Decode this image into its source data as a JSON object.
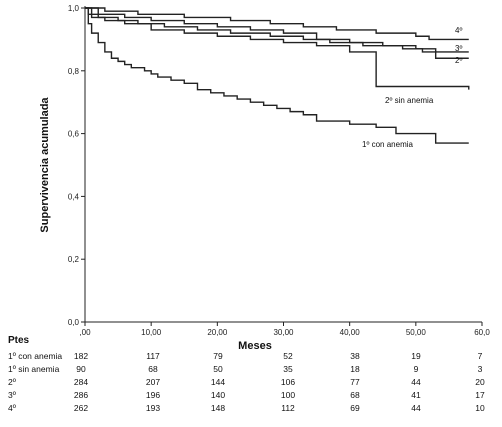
{
  "chart_data": {
    "type": "line",
    "title": "",
    "xlabel": "Meses",
    "ylabel": "Supervivencia acumulada",
    "xlim": [
      0,
      60
    ],
    "ylim": [
      0,
      1
    ],
    "xticks": [
      ",00",
      "10,00",
      "20,00",
      "30,00",
      "40,00",
      "50,00",
      "60,0"
    ],
    "xtick_values": [
      0,
      10,
      20,
      30,
      40,
      50,
      60
    ],
    "yticks": [
      "0,0",
      "0,2",
      "0,4",
      "0,6",
      "0,8",
      "1,0"
    ],
    "ytick_values": [
      0,
      0.2,
      0.4,
      0.6,
      0.8,
      1.0
    ],
    "step": true,
    "series": [
      {
        "name": "1º con anemia",
        "points": [
          [
            0,
            1.0
          ],
          [
            0.5,
            0.95
          ],
          [
            1,
            0.92
          ],
          [
            2,
            0.89
          ],
          [
            3,
            0.86
          ],
          [
            4,
            0.84
          ],
          [
            5,
            0.83
          ],
          [
            6,
            0.82
          ],
          [
            7,
            0.81
          ],
          [
            9,
            0.8
          ],
          [
            10,
            0.79
          ],
          [
            11,
            0.78
          ],
          [
            13,
            0.77
          ],
          [
            15,
            0.76
          ],
          [
            17,
            0.74
          ],
          [
            19,
            0.73
          ],
          [
            21,
            0.72
          ],
          [
            23,
            0.71
          ],
          [
            25,
            0.7
          ],
          [
            27,
            0.69
          ],
          [
            29,
            0.68
          ],
          [
            31,
            0.67
          ],
          [
            33,
            0.66
          ],
          [
            35,
            0.64
          ],
          [
            40,
            0.63
          ],
          [
            44,
            0.62
          ],
          [
            47,
            0.6
          ],
          [
            53,
            0.57
          ],
          [
            58,
            0.57
          ]
        ]
      },
      {
        "name": "2º sin anemia",
        "points": [
          [
            0,
            1.0
          ],
          [
            1,
            0.97
          ],
          [
            3,
            0.96
          ],
          [
            6,
            0.95
          ],
          [
            10,
            0.93
          ],
          [
            15,
            0.92
          ],
          [
            20,
            0.91
          ],
          [
            25,
            0.9
          ],
          [
            30,
            0.89
          ],
          [
            35,
            0.88
          ],
          [
            40,
            0.86
          ],
          [
            44,
            0.75
          ],
          [
            58,
            0.74
          ]
        ]
      },
      {
        "name": "2º",
        "points": [
          [
            0,
            1.0
          ],
          [
            0.5,
            0.98
          ],
          [
            2,
            0.97
          ],
          [
            5,
            0.96
          ],
          [
            8,
            0.95
          ],
          [
            12,
            0.94
          ],
          [
            17,
            0.93
          ],
          [
            22,
            0.92
          ],
          [
            28,
            0.91
          ],
          [
            33,
            0.9
          ],
          [
            37,
            0.89
          ],
          [
            42,
            0.88
          ],
          [
            48,
            0.87
          ],
          [
            51,
            0.86
          ],
          [
            53,
            0.84
          ],
          [
            58,
            0.84
          ]
        ]
      },
      {
        "name": "3º",
        "points": [
          [
            0,
            1.0
          ],
          [
            2,
            0.98
          ],
          [
            6,
            0.97
          ],
          [
            10,
            0.96
          ],
          [
            15,
            0.95
          ],
          [
            20,
            0.94
          ],
          [
            25,
            0.93
          ],
          [
            30,
            0.92
          ],
          [
            35,
            0.9
          ],
          [
            40,
            0.89
          ],
          [
            45,
            0.88
          ],
          [
            50,
            0.87
          ],
          [
            53,
            0.86
          ],
          [
            58,
            0.86
          ]
        ]
      },
      {
        "name": "4º",
        "points": [
          [
            0,
            1.0
          ],
          [
            3,
            0.99
          ],
          [
            8,
            0.98
          ],
          [
            15,
            0.97
          ],
          [
            22,
            0.96
          ],
          [
            28,
            0.95
          ],
          [
            33,
            0.94
          ],
          [
            38,
            0.93
          ],
          [
            44,
            0.92
          ],
          [
            50,
            0.91
          ],
          [
            52,
            0.9
          ],
          [
            58,
            0.9
          ]
        ]
      }
    ],
    "series_labels": [
      "4º",
      "3º",
      "2º",
      "2º sin anemia",
      "1º con anemia"
    ]
  },
  "risk_table": {
    "header": "Ptes",
    "rows": [
      {
        "label": "1º con anemia",
        "values": [
          "182",
          "117",
          "79",
          "52",
          "38",
          "19",
          "7"
        ]
      },
      {
        "label": "1º  sin anemia",
        "values": [
          "90",
          "68",
          "50",
          "35",
          "18",
          "9",
          "3"
        ]
      },
      {
        "label": "2º",
        "values": [
          "284",
          "207",
          "144",
          "106",
          "77",
          "44",
          "20"
        ]
      },
      {
        "label": "3º",
        "values": [
          "286",
          "196",
          "140",
          "100",
          "68",
          "41",
          "17"
        ]
      },
      {
        "label": "4º",
        "values": [
          "262",
          "193",
          "148",
          "112",
          "69",
          "44",
          "10"
        ]
      }
    ]
  }
}
